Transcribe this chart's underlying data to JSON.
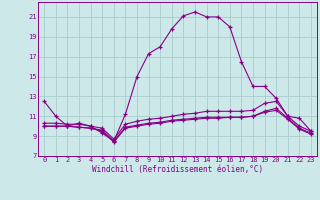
{
  "xlabel": "Windchill (Refroidissement éolien,°C)",
  "ylabel": "",
  "background_color": "#cce8e8",
  "grid_color": "#aacccc",
  "line_color": "#880088",
  "xlim": [
    -0.5,
    23.5
  ],
  "ylim": [
    7,
    22.5
  ],
  "xticks": [
    0,
    1,
    2,
    3,
    4,
    5,
    6,
    7,
    8,
    9,
    10,
    11,
    12,
    13,
    14,
    15,
    16,
    17,
    18,
    19,
    20,
    21,
    22,
    23
  ],
  "yticks": [
    7,
    9,
    11,
    13,
    15,
    17,
    19,
    21
  ],
  "line1_x": [
    0,
    1,
    2,
    3,
    4,
    5,
    6,
    7,
    8,
    9,
    10,
    11,
    12,
    13,
    14,
    15,
    16,
    17,
    18,
    19,
    20,
    21,
    22,
    23
  ],
  "line1_y": [
    12.5,
    11.0,
    10.0,
    10.3,
    10.0,
    9.3,
    8.5,
    11.2,
    15.0,
    17.3,
    18.0,
    19.8,
    21.1,
    21.5,
    21.0,
    21.0,
    20.0,
    16.5,
    14.0,
    14.0,
    12.8,
    11.0,
    10.8,
    9.5
  ],
  "line2_x": [
    0,
    1,
    2,
    3,
    4,
    5,
    6,
    7,
    8,
    9,
    10,
    11,
    12,
    13,
    14,
    15,
    16,
    17,
    18,
    19,
    20,
    21,
    22,
    23
  ],
  "line2_y": [
    10.3,
    10.3,
    10.2,
    10.2,
    10.0,
    9.8,
    8.7,
    10.2,
    10.5,
    10.7,
    10.8,
    11.0,
    11.2,
    11.3,
    11.5,
    11.5,
    11.5,
    11.5,
    11.6,
    12.3,
    12.5,
    11.0,
    10.0,
    9.5
  ],
  "line3_x": [
    0,
    1,
    2,
    3,
    4,
    5,
    6,
    7,
    8,
    9,
    10,
    11,
    12,
    13,
    14,
    15,
    16,
    17,
    18,
    19,
    20,
    21,
    22,
    23
  ],
  "line3_y": [
    10.0,
    10.0,
    10.0,
    9.9,
    9.8,
    9.6,
    8.5,
    9.9,
    10.1,
    10.3,
    10.4,
    10.6,
    10.7,
    10.8,
    10.9,
    10.9,
    10.9,
    10.9,
    11.0,
    11.5,
    11.8,
    10.8,
    9.8,
    9.3
  ],
  "line4_x": [
    0,
    1,
    2,
    3,
    4,
    5,
    6,
    7,
    8,
    9,
    10,
    11,
    12,
    13,
    14,
    15,
    16,
    17,
    18,
    19,
    20,
    21,
    22,
    23
  ],
  "line4_y": [
    10.0,
    10.0,
    10.0,
    9.9,
    9.8,
    9.5,
    8.4,
    9.8,
    10.0,
    10.2,
    10.3,
    10.5,
    10.6,
    10.7,
    10.8,
    10.8,
    10.9,
    10.9,
    11.0,
    11.4,
    11.6,
    10.7,
    9.7,
    9.2
  ],
  "tick_fontsize": 5.0,
  "xlabel_fontsize": 5.5
}
